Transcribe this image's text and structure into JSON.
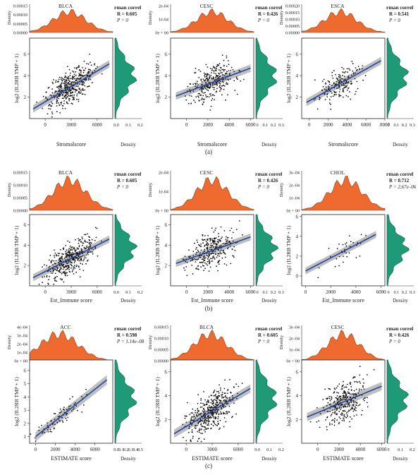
{
  "colors": {
    "density_top": "#ee6a2e",
    "density_side": "#1e9a76",
    "fit_line": "#22449e",
    "ci_band": "#a9a9a9",
    "points": "#111111"
  },
  "figure": {
    "panel_labels": [
      "(a)",
      "(b)",
      "(c)"
    ]
  },
  "chart_data": [
    {
      "type": "scatter",
      "panel": "a",
      "title": "BLCA",
      "corr_label": "rman correl",
      "r_text": "R = 0.605",
      "p_text": "P = 0",
      "xlabel": "Stromalscore",
      "ylabel": "log2 (IL2RB TMP + 1)",
      "xlim": [
        -1800,
        7800
      ],
      "ylim": [
        0,
        7.5
      ],
      "xticks": [
        "0",
        "3000",
        "6000"
      ],
      "yticks": [
        "2",
        "4",
        "6"
      ],
      "top_density_ticks": [
        "0.00015",
        "0.00010",
        "0.00005",
        "0.00000"
      ],
      "top_density_label": "Density",
      "side_density_ticks": [
        "0.0",
        "0.1",
        "0.2"
      ],
      "side_density_label": "Density",
      "fit": {
        "x0": -1400,
        "y0": 0.9,
        "x1": 7400,
        "y1": 5.1
      },
      "n_points": 400,
      "x_center": 2800,
      "x_spread": 1900,
      "y_noise": 1.1
    },
    {
      "type": "scatter",
      "panel": "a",
      "title": "CESC",
      "corr_label": "rman correl",
      "r_text": "R = 0.426",
      "p_text": "P = 0",
      "xlabel": "Stromalscore",
      "ylabel": "log2 (IL2RB TMP + 1)",
      "xlim": [
        -1500,
        6300
      ],
      "ylim": [
        0,
        7.5
      ],
      "xticks": [
        "0",
        "2000",
        "4000",
        "6000"
      ],
      "yticks": [
        "2",
        "4",
        "6"
      ],
      "top_density_ticks": [
        "2e-04",
        "1e-04",
        "0e + 00"
      ],
      "top_density_label": "Density",
      "side_density_ticks": [
        "0",
        "0.1",
        "0.2",
        "0.3"
      ],
      "side_density_label": "Density",
      "fit": {
        "x0": -1000,
        "y0": 2.1,
        "x1": 6000,
        "y1": 4.7
      },
      "n_points": 300,
      "x_center": 2400,
      "x_spread": 1500,
      "y_noise": 1.2
    },
    {
      "type": "scatter",
      "panel": "a",
      "title": "ESCA",
      "corr_label": "rman correl",
      "r_text": "R = 0.541",
      "p_text": "P = 0",
      "xlabel": "Stromalscore",
      "ylabel": "log2 (IL2RB TMP + 1)",
      "xlim": [
        -800,
        8000
      ],
      "ylim": [
        0,
        7.5
      ],
      "xticks": [
        "0",
        "2000",
        "4000",
        "6000",
        "8000"
      ],
      "yticks": [
        "2",
        "4",
        "6"
      ],
      "top_density_ticks": [
        "0.00020",
        "0.00015",
        "0.00010",
        "0.00005",
        "0.00000"
      ],
      "top_density_label": "Density",
      "side_density_ticks": [
        "0",
        "0.1",
        "0.2",
        "0.3"
      ],
      "side_density_label": "Density",
      "fit": {
        "x0": -300,
        "y0": 1.5,
        "x1": 7600,
        "y1": 5.4
      },
      "n_points": 180,
      "x_center": 3300,
      "x_spread": 1700,
      "y_noise": 1.0
    },
    {
      "type": "scatter",
      "panel": "b",
      "title": "BLCA",
      "corr_label": "rman correl",
      "r_text": "R = 0.605",
      "p_text": "P = 0",
      "xlabel": "Est_Immune score",
      "ylabel": "log2 (IL2RB TMP + 1)",
      "xlim": [
        -1800,
        7800
      ],
      "ylim": [
        0,
        7
      ],
      "xticks": [
        "0",
        "3000",
        "6000"
      ],
      "yticks": [
        "2",
        "4",
        "6"
      ],
      "top_density_ticks": [
        "0.00015",
        "0.00010",
        "0.00005",
        "0.00000"
      ],
      "top_density_label": "Density",
      "side_density_ticks": [
        "0.0",
        "0.1",
        "0.2"
      ],
      "side_density_label": "Density",
      "fit": {
        "x0": -1400,
        "y0": 0.8,
        "x1": 7400,
        "y1": 4.6
      },
      "n_points": 400,
      "x_center": 2800,
      "x_spread": 1900,
      "y_noise": 1.1
    },
    {
      "type": "scatter",
      "panel": "b",
      "title": "CESC",
      "corr_label": "rman correl",
      "r_text": "R = 0.426",
      "p_text": "P = 0",
      "xlabel": "Est_Immune score",
      "ylabel": "log2 (IL2RB TMP + 1)",
      "xlim": [
        -1500,
        6300
      ],
      "ylim": [
        0,
        7
      ],
      "xticks": [
        "0",
        "2000",
        "4000",
        "6000"
      ],
      "yticks": [
        "2",
        "4",
        "6"
      ],
      "top_density_ticks": [
        "2e-04",
        "1e-04",
        "0e + 00"
      ],
      "top_density_label": "Density",
      "side_density_ticks": [
        "0",
        "0.1",
        "0.2",
        "0.3"
      ],
      "side_density_label": "Density",
      "fit": {
        "x0": -1000,
        "y0": 2.2,
        "x1": 6000,
        "y1": 4.8
      },
      "n_points": 300,
      "x_center": 2400,
      "x_spread": 1500,
      "y_noise": 1.2
    },
    {
      "type": "scatter",
      "panel": "b",
      "title": "CHOL",
      "corr_label": "rman correl",
      "r_text": "R = 0.712",
      "p_text": "P = 2.67e–06",
      "xlabel": "Est_Immune score",
      "ylabel": "log2 (IL2RB TMP + 1)",
      "xlim": [
        -300,
        6300
      ],
      "ylim": [
        -1,
        6.2
      ],
      "xticks": [
        "0",
        "2000",
        "4000",
        "6000"
      ],
      "yticks": [
        "0",
        "2",
        "4",
        "6"
      ],
      "top_density_ticks": [
        "3e–04",
        "2e–04",
        "1e–04",
        "0e + 00"
      ],
      "top_density_label": "Density",
      "side_density_ticks": [
        "0",
        "0.1",
        "0.2",
        "0.3"
      ],
      "side_density_label": "Density",
      "fit": {
        "x0": 0,
        "y0": 0.5,
        "x1": 5600,
        "y1": 4.2
      },
      "n_points": 36,
      "x_center": 3200,
      "x_spread": 1300,
      "y_noise": 1.0
    },
    {
      "type": "scatter",
      "panel": "c",
      "title": "ACC",
      "corr_label": "rman correl",
      "r_text": "R = 0.598",
      "p_text": "P = 1.14e–08",
      "xlabel": "ESTIMATE score",
      "ylabel": "log2 (IL2RB TMP + 1)",
      "xlim": [
        -600,
        7800
      ],
      "ylim": [
        0.5,
        6.8
      ],
      "xticks": [
        "0",
        "2000",
        "4000",
        "6000"
      ],
      "yticks": [
        "1",
        "2",
        "3",
        "4",
        "5",
        "6"
      ],
      "top_density_ticks": [
        "4e–04",
        "3e–04",
        "2e–04",
        "1e–04",
        "0e + 00"
      ],
      "top_density_label": "Density",
      "side_density_ticks": [
        "0.0",
        "0.1",
        "0.2",
        "0.3",
        "0.4",
        "0.5"
      ],
      "side_density_label": "Density",
      "fit": {
        "x0": 0,
        "y0": 1.0,
        "x1": 7200,
        "y1": 5.3
      },
      "n_points": 80,
      "x_center": 2400,
      "x_spread": 1900,
      "y_noise": 0.5
    },
    {
      "type": "scatter",
      "panel": "c",
      "title": "BLCA",
      "corr_label": "rman correl",
      "r_text": "R = 0.605",
      "p_text": "P = 0",
      "xlabel": "ESTIMATE score",
      "ylabel": "log2 (IL2RB TMP + 1)",
      "xlim": [
        -1800,
        7800
      ],
      "ylim": [
        0,
        7
      ],
      "xticks": [
        "0",
        "3000",
        "6000"
      ],
      "yticks": [
        "2",
        "4",
        "6"
      ],
      "top_density_ticks": [
        "0.00015",
        "0.00010",
        "0.00005",
        "0.00000"
      ],
      "top_density_label": "Density",
      "side_density_ticks": [
        "0.0",
        "0.1",
        "0.2"
      ],
      "side_density_label": "Density",
      "fit": {
        "x0": -1400,
        "y0": 0.8,
        "x1": 7400,
        "y1": 4.6
      },
      "n_points": 400,
      "x_center": 2800,
      "x_spread": 1900,
      "y_noise": 1.1
    },
    {
      "type": "scatter",
      "panel": "c",
      "title": "CESC",
      "corr_label": "rman correl",
      "r_text": "R = 0.426",
      "p_text": "P = 0",
      "xlabel": "ESTIMATE score",
      "ylabel": "log2 (IL2RB TMP + 1)",
      "xlim": [
        -1500,
        6300
      ],
      "ylim": [
        0,
        7
      ],
      "xticks": [
        "0",
        "2000",
        "4000",
        "6000"
      ],
      "yticks": [
        "2",
        "4",
        "6"
      ],
      "top_density_ticks": [
        "3e–04",
        "2e–04",
        "1e–04",
        "0e + 00"
      ],
      "top_density_label": "Density",
      "side_density_ticks": [
        "0",
        "0.1",
        "0.2"
      ],
      "side_density_label": "Density",
      "fit": {
        "x0": -1000,
        "y0": 2.2,
        "x1": 6000,
        "y1": 4.8
      },
      "n_points": 300,
      "x_center": 2400,
      "x_spread": 1500,
      "y_noise": 1.2
    }
  ]
}
